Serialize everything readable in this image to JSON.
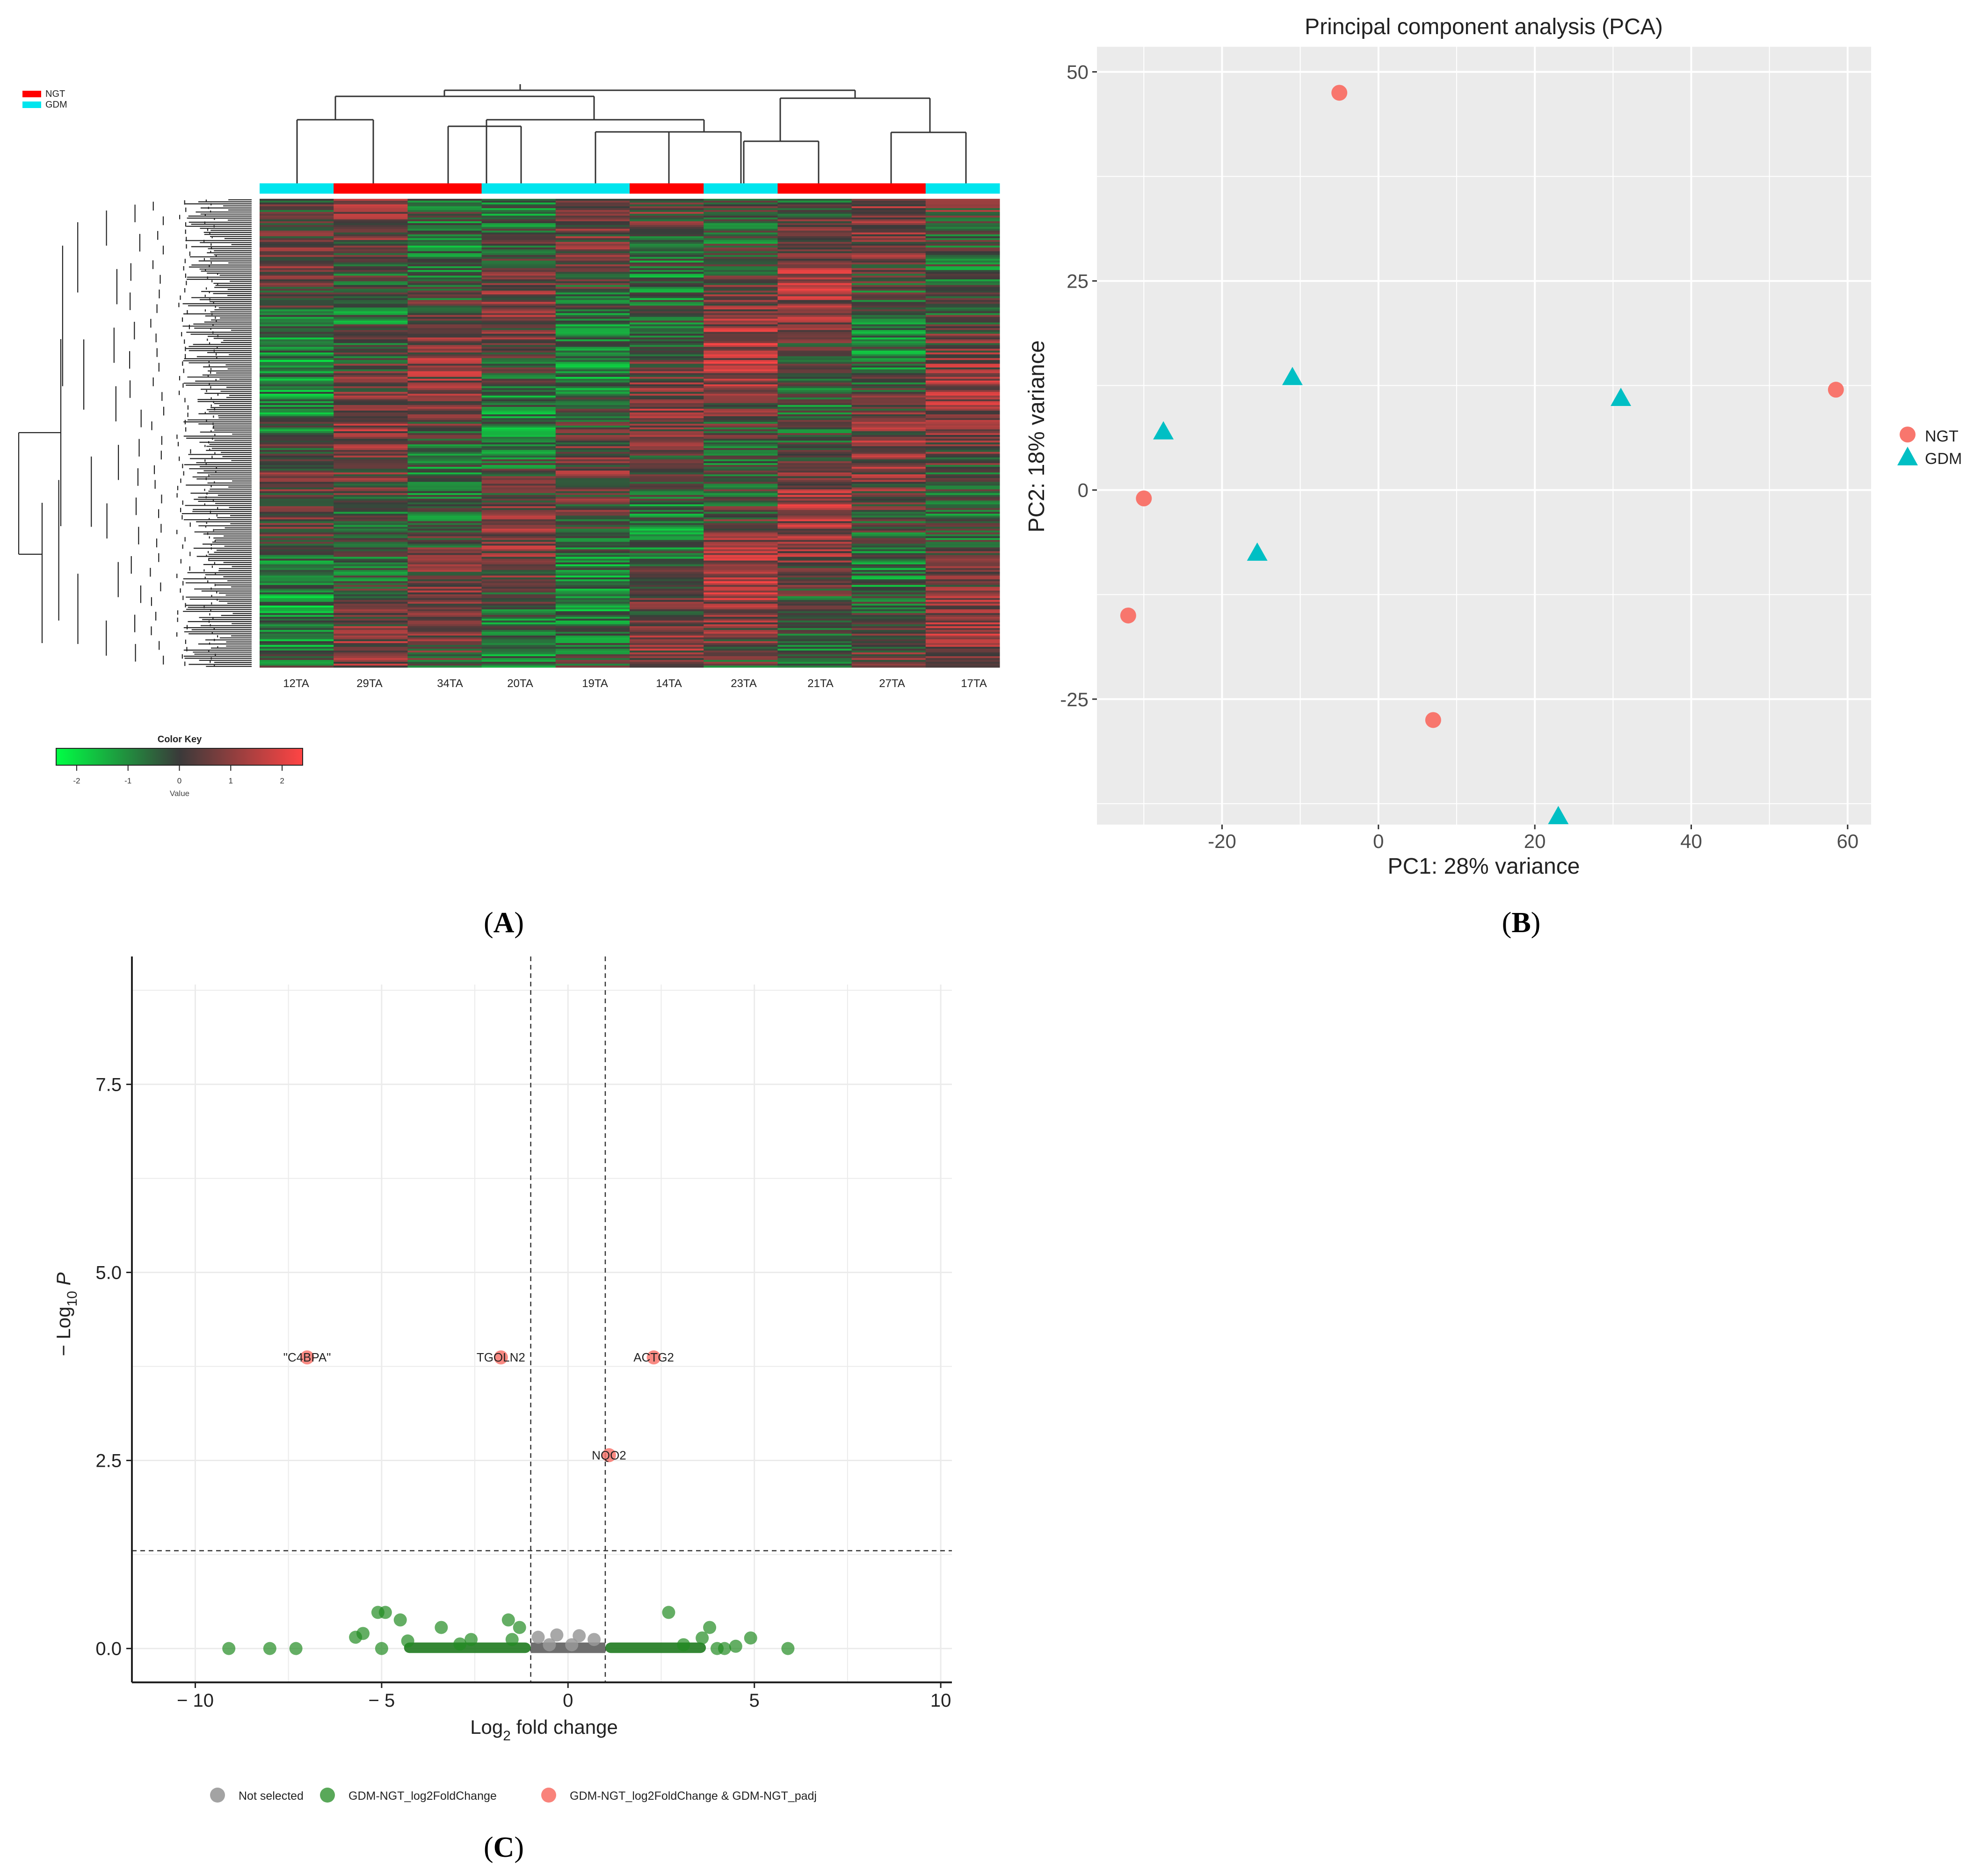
{
  "panels": {
    "A": "A",
    "B": "B",
    "C": "C"
  },
  "colors": {
    "ngt_bar": "#ff0000",
    "gdm_bar": "#00e5ee",
    "pca_ngt": "#f8766d",
    "pca_gdm": "#00bfc4",
    "pca_bg": "#ebebeb",
    "volcano_gray": "#999999",
    "volcano_green": "#228b22",
    "volcano_red": "#f8766d",
    "heat_low": "#00ff44",
    "heat_mid": "#3a3a3a",
    "heat_high": "#ff4444"
  },
  "chart_data": [
    {
      "type": "heatmap",
      "legend": [
        {
          "label": "NGT",
          "color": "#ff0000"
        },
        {
          "label": "GDM",
          "color": "#00e5ee"
        }
      ],
      "samples": [
        "12TA",
        "29TA",
        "34TA",
        "20TA",
        "19TA",
        "14TA",
        "23TA",
        "21TA",
        "27TA",
        "17TA"
      ],
      "sample_groups": [
        "GDM",
        "NGT",
        "NGT",
        "GDM",
        "GDM",
        "NGT",
        "GDM",
        "NGT",
        "NGT",
        "GDM"
      ],
      "color_key": {
        "title": "Color Key",
        "label": "Value",
        "ticks": [
          "-2",
          "-1",
          "0",
          "1",
          "2"
        ],
        "range": [
          -2.4,
          2.4
        ]
      }
    },
    {
      "type": "scatter",
      "title": "Principal component analysis (PCA)",
      "xlabel": "PC1: 28% variance",
      "ylabel": "PC2: 18% variance",
      "xlim": [
        -36,
        63
      ],
      "ylim": [
        -40,
        53
      ],
      "xticks": [
        "-20",
        "0",
        "20",
        "40",
        "60"
      ],
      "yticks": [
        "-25",
        "0",
        "25",
        "50"
      ],
      "legend": [
        "NGT",
        "GDM"
      ],
      "series": [
        {
          "name": "NGT",
          "marker": "circle",
          "points": [
            [
              -5,
              47.5
            ],
            [
              58.5,
              12
            ],
            [
              -30,
              -1
            ],
            [
              -32,
              -15
            ],
            [
              7,
              -27.5
            ]
          ]
        },
        {
          "name": "GDM",
          "marker": "triangle",
          "points": [
            [
              -27.5,
              7
            ],
            [
              -11,
              13.5
            ],
            [
              31,
              11
            ],
            [
              -15.5,
              -7.5
            ],
            [
              23,
              -39
            ]
          ]
        }
      ]
    },
    {
      "type": "scatter",
      "xlabel": "Log",
      "xlabel_sub": "2",
      "xlabel_rest": " fold change",
      "ylabel_pre": "− Log",
      "ylabel_sub": "10",
      "ylabel_italic": "P",
      "xlim": [
        -11.7,
        10.3
      ],
      "ylim": [
        -0.45,
        9.2
      ],
      "xticks": [
        "− 10",
        "− 5",
        "0",
        "5",
        "10"
      ],
      "yticks": [
        "0.0",
        "2.5",
        "5.0",
        "7.5"
      ],
      "fc_cutoffs": [
        -1,
        1
      ],
      "p_cutoff": 1.3,
      "legend": [
        "Not selected",
        "GDM-NGT_log2FoldChange",
        "GDM-NGT_log2FoldChange & GDM-NGT_padj"
      ],
      "labeled_points": [
        {
          "label": "\"C4BPA\"",
          "x": -7.0,
          "y": 3.87
        },
        {
          "label": "TGOLN2",
          "x": -1.8,
          "y": 3.87
        },
        {
          "label": "ACTG2",
          "x": 2.3,
          "y": 3.87
        },
        {
          "label": "NQO2",
          "x": 1.1,
          "y": 2.57
        }
      ],
      "green_points": [
        [
          -9.1,
          0.0
        ],
        [
          -8.0,
          0.0
        ],
        [
          -7.3,
          0.0
        ],
        [
          -5.7,
          0.15
        ],
        [
          -5.5,
          0.2
        ],
        [
          -5.1,
          0.48
        ],
        [
          -4.9,
          0.48
        ],
        [
          -5.0,
          0.0
        ],
        [
          -4.5,
          0.38
        ],
        [
          -4.3,
          0.1
        ],
        [
          -3.4,
          0.28
        ],
        [
          -2.9,
          0.06
        ],
        [
          -2.6,
          0.12
        ],
        [
          -1.6,
          0.38
        ],
        [
          -1.3,
          0.28
        ],
        [
          -1.5,
          0.12
        ],
        [
          2.7,
          0.48
        ],
        [
          3.8,
          0.28
        ],
        [
          3.6,
          0.14
        ],
        [
          4.2,
          0.0
        ],
        [
          4.5,
          0.03
        ],
        [
          4.9,
          0.14
        ],
        [
          5.9,
          0.0
        ],
        [
          3.1,
          0.05
        ],
        [
          4.0,
          0.0
        ]
      ],
      "gray_points": [
        [
          -0.8,
          0.15
        ],
        [
          -0.3,
          0.18
        ],
        [
          0.3,
          0.17
        ],
        [
          0.7,
          0.12
        ],
        [
          -0.5,
          0.05
        ],
        [
          0.1,
          0.05
        ]
      ]
    }
  ]
}
